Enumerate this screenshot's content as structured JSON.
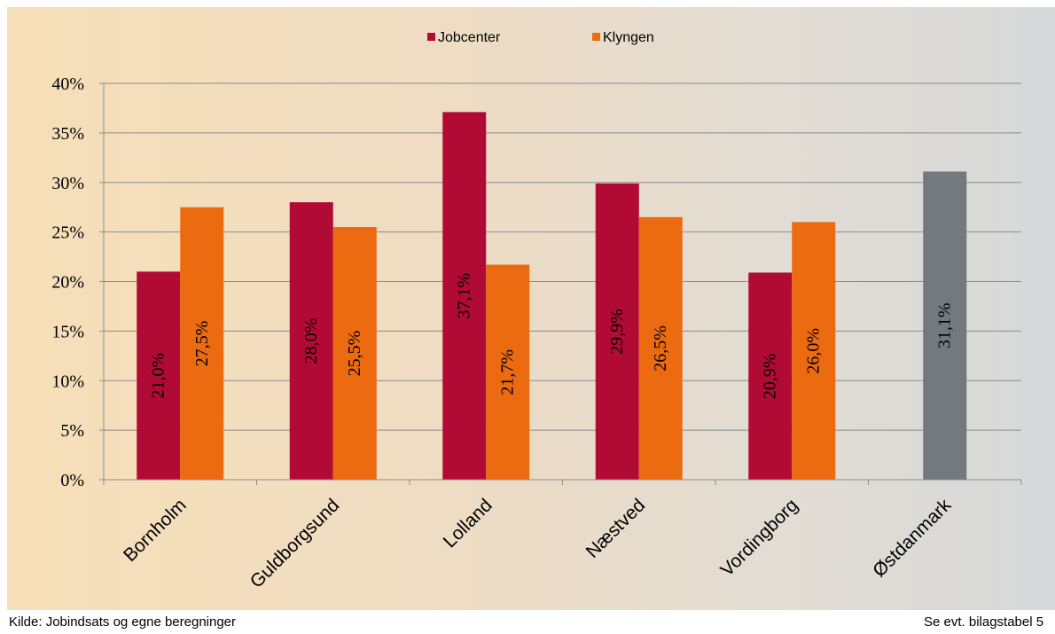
{
  "chart_data": {
    "type": "bar",
    "title": "",
    "xlabel": "",
    "ylabel": "",
    "ylim": [
      0,
      40
    ],
    "y_ticks": [
      "0%",
      "5%",
      "10%",
      "15%",
      "20%",
      "25%",
      "30%",
      "35%",
      "40%"
    ],
    "grid": "horizontal",
    "legend_position": "top-center",
    "categories": [
      "Bornholm",
      "Guldborgsund",
      "Lolland",
      "Næstved",
      "Vordingborg",
      "Østdanmark"
    ],
    "series": [
      {
        "name": "Jobcenter",
        "color": "#b10a35",
        "values": [
          21.0,
          28.0,
          37.1,
          29.9,
          20.9,
          null
        ],
        "labels": [
          "21,0%",
          "28,0%",
          "37,1%",
          "29,9%",
          "20,9%",
          null
        ]
      },
      {
        "name": "Klyngen",
        "color": "#ec6a10",
        "values": [
          27.5,
          25.5,
          21.7,
          26.5,
          26.0,
          null
        ],
        "labels": [
          "27,5%",
          "25,5%",
          "21,7%",
          "26,5%",
          "26,0%",
          null
        ]
      }
    ],
    "aggregate_bar": {
      "category": "Østdanmark",
      "value": 31.1,
      "label": "31,1%",
      "color": "#73797c"
    }
  },
  "footer": {
    "source": "Kilde: Jobindsats og egne beregninger",
    "note": "Se evt. bilagstabel 5"
  }
}
